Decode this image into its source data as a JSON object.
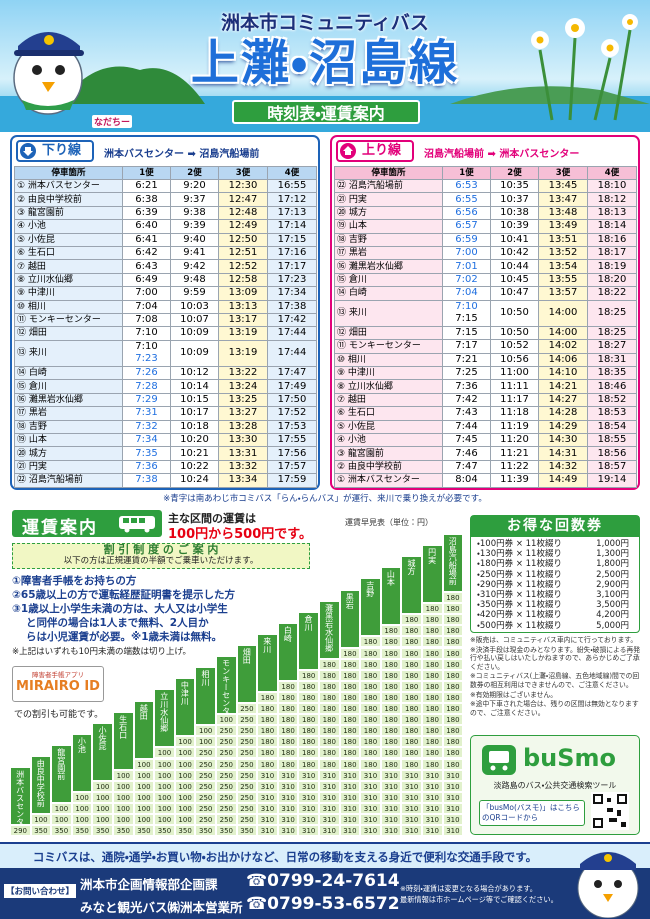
{
  "header": {
    "subtitle": "洲本市コミュニティバス",
    "title": "上灘・沼島線",
    "banner": "時刻表・運賃案内",
    "mascot": "なだちー"
  },
  "timetables": [
    {
      "direction": "下り線",
      "route": "洲本バスセンター ➡ 沼島汽船場前",
      "color": "#1d63b8",
      "columns": [
        "停車箇所",
        "1便",
        "2便",
        "3便",
        "4便"
      ],
      "blue_color": "#1f6fe0",
      "blue_cells": [
        "12.0.1",
        "13.0",
        "14.0",
        "15.0",
        "16.0",
        "17.0",
        "18.0",
        "19.0",
        "20.0",
        "21.0"
      ],
      "rows": [
        {
          "stop": "① 洲本バスセンター",
          "times": [
            "6:21",
            "9:20",
            "12:30",
            "16:55"
          ]
        },
        {
          "stop": "② 由良中学校前",
          "times": [
            "6:38",
            "9:37",
            "12:47",
            "17:12"
          ]
        },
        {
          "stop": "③ 龍宮園前",
          "times": [
            "6:39",
            "9:38",
            "12:48",
            "17:13"
          ]
        },
        {
          "stop": "④ 小池",
          "times": [
            "6:40",
            "9:39",
            "12:49",
            "17:14"
          ]
        },
        {
          "stop": "⑤ 小佐昆",
          "times": [
            "6:41",
            "9:40",
            "12:50",
            "17:15"
          ]
        },
        {
          "stop": "⑥ 生石口",
          "times": [
            "6:42",
            "9:41",
            "12:51",
            "17:16"
          ]
        },
        {
          "stop": "⑦ 越田",
          "times": [
            "6:43",
            "9:42",
            "12:52",
            "17:17"
          ]
        },
        {
          "stop": "⑧ 立川水仙郷",
          "times": [
            "6:49",
            "9:48",
            "12:58",
            "17:23"
          ]
        },
        {
          "stop": "⑨ 中津川",
          "times": [
            "7:00",
            "9:59",
            "13:09",
            "17:34"
          ]
        },
        {
          "stop": "⑩ 相川",
          "times": [
            "7:04",
            "10:03",
            "13:13",
            "17:38"
          ]
        },
        {
          "stop": "⑪ モンキーセンター",
          "times": [
            "7:08",
            "10:07",
            "13:17",
            "17:42"
          ]
        },
        {
          "stop": "⑫ 畑田",
          "times": [
            "7:10",
            "10:09",
            "13:19",
            "17:44"
          ]
        },
        {
          "stop": "⑬ 来川",
          "times": [
            [
              "7:10",
              "7:23"
            ],
            "10:09",
            "13:19",
            "17:44"
          ]
        },
        {
          "stop": "⑭ 白崎",
          "times": [
            "7:26",
            "10:12",
            "13:22",
            "17:47"
          ]
        },
        {
          "stop": "⑮ 倉川",
          "times": [
            "7:28",
            "10:14",
            "13:24",
            "17:49"
          ]
        },
        {
          "stop": "⑯ 灘黒岩水仙郷",
          "times": [
            "7:29",
            "10:15",
            "13:25",
            "17:50"
          ]
        },
        {
          "stop": "⑰ 黒岩",
          "times": [
            "7:31",
            "10:17",
            "13:27",
            "17:52"
          ]
        },
        {
          "stop": "⑱ 吉野",
          "times": [
            "7:32",
            "10:18",
            "13:28",
            "17:53"
          ]
        },
        {
          "stop": "⑲ 山本",
          "times": [
            "7:34",
            "10:20",
            "13:30",
            "17:55"
          ]
        },
        {
          "stop": "⑳ 城方",
          "times": [
            "7:35",
            "10:21",
            "13:31",
            "17:56"
          ]
        },
        {
          "stop": "㉑ 円実",
          "times": [
            "7:36",
            "10:22",
            "13:32",
            "17:57"
          ]
        },
        {
          "stop": "㉒ 沼島汽船場前",
          "times": [
            "7:38",
            "10:24",
            "13:34",
            "17:59"
          ]
        }
      ]
    },
    {
      "direction": "上り線",
      "route": "沼島汽船場前 ➡ 洲本バスセンター",
      "color": "#e2007a",
      "columns": [
        "停車箇所",
        "1便",
        "2便",
        "3便",
        "4便"
      ],
      "blue_color": "#1f6fe0",
      "blue_cells": [
        "0.0",
        "1.0",
        "2.0",
        "3.0",
        "4.0",
        "5.0",
        "6.0",
        "7.0",
        "8.0",
        "9.0.0"
      ],
      "rows": [
        {
          "stop": "㉒ 沼島汽船場前",
          "times": [
            "6:53",
            "10:35",
            "13:45",
            "18:10"
          ]
        },
        {
          "stop": "㉑ 円実",
          "times": [
            "6:55",
            "10:37",
            "13:47",
            "18:12"
          ]
        },
        {
          "stop": "⑳ 城方",
          "times": [
            "6:56",
            "10:38",
            "13:48",
            "18:13"
          ]
        },
        {
          "stop": "⑲ 山本",
          "times": [
            "6:57",
            "10:39",
            "13:49",
            "18:14"
          ]
        },
        {
          "stop": "⑱ 吉野",
          "times": [
            "6:59",
            "10:41",
            "13:51",
            "18:16"
          ]
        },
        {
          "stop": "⑰ 黒岩",
          "times": [
            "7:00",
            "10:42",
            "13:52",
            "18:17"
          ]
        },
        {
          "stop": "⑯ 灘黒岩水仙郷",
          "times": [
            "7:01",
            "10:44",
            "13:54",
            "18:19"
          ]
        },
        {
          "stop": "⑮ 倉川",
          "times": [
            "7:02",
            "10:45",
            "13:55",
            "18:20"
          ]
        },
        {
          "stop": "⑭ 白崎",
          "times": [
            "7:04",
            "10:47",
            "13:57",
            "18:22"
          ]
        },
        {
          "stop": "⑬ 来川",
          "times": [
            [
              "7:10",
              "7:15"
            ],
            "10:50",
            "14:00",
            "18:25"
          ]
        },
        {
          "stop": "⑫ 畑田",
          "times": [
            "7:15",
            "10:50",
            "14:00",
            "18:25"
          ]
        },
        {
          "stop": "⑪ モンキーセンター",
          "times": [
            "7:17",
            "10:52",
            "14:02",
            "18:27"
          ]
        },
        {
          "stop": "⑩ 相川",
          "times": [
            "7:21",
            "10:56",
            "14:06",
            "18:31"
          ]
        },
        {
          "stop": "⑨ 中津川",
          "times": [
            "7:25",
            "11:00",
            "14:10",
            "18:35"
          ]
        },
        {
          "stop": "⑧ 立川水仙郷",
          "times": [
            "7:36",
            "11:11",
            "14:21",
            "18:46"
          ]
        },
        {
          "stop": "⑦ 越田",
          "times": [
            "7:42",
            "11:17",
            "14:27",
            "18:52"
          ]
        },
        {
          "stop": "⑥ 生石口",
          "times": [
            "7:43",
            "11:18",
            "14:28",
            "18:53"
          ]
        },
        {
          "stop": "⑤ 小佐昆",
          "times": [
            "7:44",
            "11:19",
            "14:29",
            "18:54"
          ]
        },
        {
          "stop": "④ 小池",
          "times": [
            "7:45",
            "11:20",
            "14:30",
            "18:55"
          ]
        },
        {
          "stop": "③ 龍宮園前",
          "times": [
            "7:46",
            "11:21",
            "14:31",
            "18:56"
          ]
        },
        {
          "stop": "② 由良中学校前",
          "times": [
            "7:47",
            "11:22",
            "14:32",
            "18:57"
          ]
        },
        {
          "stop": "① 洲本バスセンター",
          "times": [
            "8:04",
            "11:39",
            "14:49",
            "19:14"
          ]
        }
      ]
    }
  ],
  "note": "※青字は南あわじ市コミバス「らん・らんバス」が運行、来川で乗り換えが必要です。",
  "fare": {
    "heading": "運賃案内",
    "lead": "主な区間の運賃は",
    "range": "100円から500円です。",
    "discount_title": "割 引 制 度 の ご 案 内",
    "discount_sub": "以下の方は正規運賃の半額でご乗車いただけます。",
    "items": [
      "①障害者手帳をお持ちの方",
      "②65歳以上の方で運転経歴証明書を提示した方",
      "③1歳以上小学生未満の方は、大人又は小学生",
      "と同伴の場合は1人まで無料、2人目か",
      "らは小児運賃が必要。※1歳未満は無料。"
    ],
    "rounding": "※上記はいずれも10円未満の端数は切り上げ。",
    "app_label": "障害者手帳アプリ",
    "app_name": "MIRAIRO ID",
    "app_note": "での割引も可能です。"
  },
  "fare_matrix": {
    "caption": "運賃早見表（単位：円）",
    "stops": [
      "洲本バスセンター",
      "由良中学校前",
      "龍宮園前",
      "小池",
      "小佐昆",
      "生石口",
      "越田",
      "立川水仙郷",
      "中津川",
      "相川",
      "モンキーセンター",
      "畑田",
      "来川",
      "白崎",
      "倉川",
      "灘黒岩水仙郷",
      "黒岩",
      "吉野",
      "山本",
      "城方",
      "円実",
      "沼島汽船場前"
    ],
    "rows": [
      [
        180
      ],
      [
        180,
        180
      ],
      [
        180,
        180,
        180
      ],
      [
        180,
        180,
        180,
        180
      ],
      [
        180,
        180,
        180,
        180,
        180
      ],
      [
        180,
        180,
        180,
        180,
        180,
        180
      ],
      [
        180,
        180,
        180,
        180,
        180,
        180,
        180
      ],
      [
        180,
        180,
        180,
        180,
        180,
        180,
        180,
        180
      ],
      [
        180,
        180,
        180,
        180,
        180,
        180,
        180,
        180,
        180
      ],
      [
        180,
        180,
        180,
        180,
        180,
        180,
        180,
        180,
        180,
        180
      ],
      [
        250,
        180,
        180,
        180,
        180,
        180,
        180,
        180,
        180,
        180,
        180
      ],
      [
        100,
        250,
        180,
        180,
        180,
        180,
        180,
        180,
        180,
        180,
        180,
        180
      ],
      [
        100,
        250,
        250,
        180,
        180,
        180,
        180,
        180,
        180,
        180,
        180,
        180,
        180
      ],
      [
        100,
        100,
        250,
        250,
        180,
        180,
        180,
        180,
        180,
        180,
        180,
        180,
        180,
        180
      ],
      [
        100,
        100,
        250,
        250,
        250,
        180,
        180,
        180,
        180,
        180,
        180,
        180,
        180,
        180,
        180
      ],
      [
        100,
        100,
        100,
        250,
        250,
        250,
        180,
        180,
        180,
        180,
        180,
        180,
        180,
        180,
        180,
        180
      ],
      [
        100,
        100,
        100,
        100,
        250,
        250,
        250,
        310,
        310,
        310,
        310,
        310,
        310,
        310,
        310,
        310,
        310
      ],
      [
        100,
        100,
        100,
        100,
        100,
        250,
        250,
        250,
        310,
        310,
        310,
        310,
        310,
        310,
        310,
        310,
        310,
        310
      ],
      [
        100,
        100,
        100,
        100,
        100,
        100,
        250,
        250,
        250,
        310,
        310,
        310,
        310,
        310,
        310,
        310,
        310,
        310,
        310
      ],
      [
        100,
        100,
        100,
        100,
        100,
        100,
        100,
        250,
        250,
        250,
        310,
        310,
        310,
        310,
        310,
        310,
        310,
        310,
        310,
        310
      ],
      [
        100,
        100,
        100,
        100,
        100,
        100,
        100,
        100,
        250,
        250,
        250,
        310,
        310,
        310,
        310,
        310,
        310,
        310,
        310,
        310,
        310
      ],
      [
        290,
        350,
        350,
        350,
        350,
        350,
        350,
        350,
        350,
        350,
        350,
        350,
        310,
        310,
        310,
        310,
        310,
        310,
        310,
        310,
        310,
        310
      ]
    ]
  },
  "coupons": {
    "title": "お得な回数券",
    "items": [
      {
        "name": "・100円券 × 11枚綴り",
        "price": "1,000円"
      },
      {
        "name": "・130円券 × 11枚綴り",
        "price": "1,300円"
      },
      {
        "name": "・180円券 × 11枚綴り",
        "price": "1,800円"
      },
      {
        "name": "・250円券 × 11枚綴り",
        "price": "2,500円"
      },
      {
        "name": "・290円券 × 11枚綴り",
        "price": "2,900円"
      },
      {
        "name": "・310円券 × 11枚綴り",
        "price": "3,100円"
      },
      {
        "name": "・350円券 × 11枚綴り",
        "price": "3,500円"
      },
      {
        "name": "・420円券 × 11枚綴り",
        "price": "4,200円"
      },
      {
        "name": "・500円券 × 11枚綴り",
        "price": "5,000円"
      }
    ],
    "notes": [
      "※販売は、コミュニティバス車内にて行っております。",
      "※決済手段は現金のみとなります。紛失・破損による再発行や払い戻しはいたしかねますので、あらかじめご了承ください。",
      "※コミュニティバス(上灘・沼島線、五色地域線)間での回数券の相互利用はできませんので、ご注意ください。",
      "※有効期限はございません。",
      "※途中下車された場合は、残りの区間は無効となりますので、ご注意ください。"
    ]
  },
  "busmo": {
    "logo": "buSmo",
    "tagline": "淡路島のバス・公共交通検索ツール",
    "qr_note": "「busMo(バスモ)」はこちらのQRコードから"
  },
  "banner": "コミバスは、通院・通学・お買い物・お出かけなど、日常の移動を支える身近で便利な交通手段です。",
  "contact": {
    "label": "【お問い合わせ】",
    "offices": [
      {
        "name": "洲本市企画情報部企画課",
        "phone": "☎0799-24-7614"
      },
      {
        "name": "みなと観光バス㈱洲本営業所",
        "phone": "☎0799-53-6572"
      }
    ],
    "notes": [
      "※時刻・運賃は変更となる場合があります。",
      "最新情報は市ホームページ等でご確認ください。"
    ]
  }
}
